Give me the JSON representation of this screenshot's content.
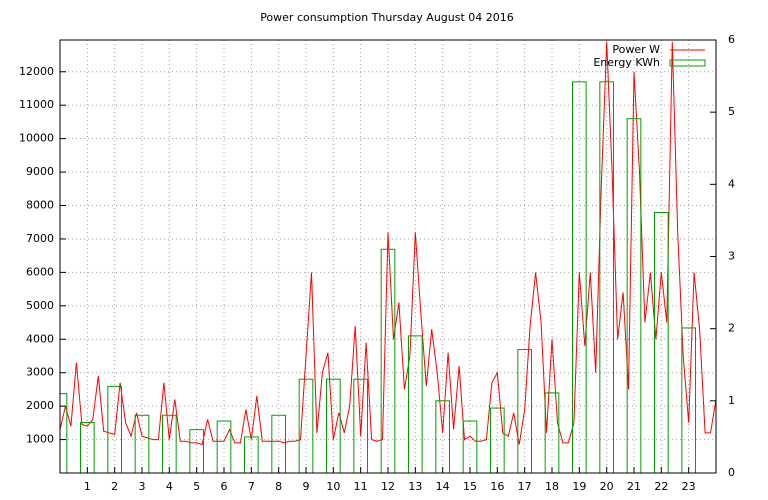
{
  "chart_data": {
    "type": "line",
    "title": "Power consumption Thursday August 04 2016",
    "xlim": [
      0,
      24
    ],
    "xticks": [
      1,
      2,
      3,
      4,
      5,
      6,
      7,
      8,
      9,
      10,
      11,
      12,
      13,
      14,
      15,
      16,
      17,
      18,
      19,
      20,
      21,
      22,
      23
    ],
    "ylim": [
      0,
      12950
    ],
    "yticks": [
      1000,
      2000,
      3000,
      4000,
      5000,
      6000,
      7000,
      8000,
      9000,
      10000,
      11000,
      12000
    ],
    "y2lim": [
      0,
      6
    ],
    "y2ticks": [
      0,
      1,
      2,
      3,
      4,
      5,
      6
    ],
    "grid": true,
    "legend": "top-right",
    "series": [
      {
        "name": "Power W",
        "color": "#ff0000",
        "style": "lines",
        "x": [
          0,
          0.2,
          0.4,
          0.6,
          0.8,
          1,
          1.2,
          1.4,
          1.6,
          1.8,
          2,
          2.2,
          2.4,
          2.6,
          2.8,
          3,
          3.2,
          3.4,
          3.6,
          3.8,
          4,
          4.2,
          4.4,
          4.6,
          4.8,
          5,
          5.2,
          5.4,
          5.6,
          5.8,
          6,
          6.2,
          6.4,
          6.6,
          6.8,
          7,
          7.2,
          7.4,
          7.6,
          7.8,
          8,
          8.2,
          8.4,
          8.6,
          8.8,
          9,
          9.2,
          9.4,
          9.6,
          9.8,
          10,
          10.2,
          10.4,
          10.6,
          10.8,
          11,
          11.2,
          11.4,
          11.6,
          11.8,
          12,
          12.2,
          12.4,
          12.6,
          12.8,
          13,
          13.2,
          13.4,
          13.6,
          13.8,
          14,
          14.2,
          14.4,
          14.6,
          14.8,
          15,
          15.2,
          15.4,
          15.6,
          15.8,
          16,
          16.2,
          16.4,
          16.6,
          16.8,
          17,
          17.2,
          17.4,
          17.6,
          17.8,
          18,
          18.2,
          18.4,
          18.6,
          18.8,
          19,
          19.2,
          19.4,
          19.6,
          19.8,
          20,
          20.2,
          20.4,
          20.6,
          20.8,
          21,
          21.2,
          21.4,
          21.6,
          21.8,
          22,
          22.2,
          22.4,
          22.6,
          22.8,
          23,
          23.2,
          23.4,
          23.6,
          23.8,
          24
        ],
        "values": [
          1300,
          2000,
          1400,
          3300,
          1450,
          1400,
          1600,
          2900,
          1250,
          1200,
          1150,
          2700,
          1500,
          1100,
          1800,
          1100,
          1050,
          1000,
          1000,
          2700,
          1000,
          2200,
          950,
          950,
          900,
          900,
          850,
          1600,
          950,
          950,
          950,
          1300,
          900,
          900,
          1900,
          1000,
          2300,
          950,
          950,
          950,
          950,
          900,
          950,
          950,
          1000,
          3500,
          6000,
          1200,
          3000,
          3600,
          1000,
          1800,
          1200,
          2000,
          4400,
          1100,
          3900,
          1000,
          950,
          1000,
          7200,
          4000,
          5100,
          2500,
          3500,
          7200,
          4800,
          2600,
          4300,
          3000,
          1200,
          3600,
          1300,
          3200,
          1000,
          1100,
          950,
          950,
          1000,
          2700,
          3000,
          1200,
          1100,
          1800,
          850,
          1900,
          4400,
          6000,
          4500,
          1200,
          4000,
          1500,
          900,
          900,
          1500,
          6000,
          3800,
          6000,
          3000,
          8500,
          12900,
          9000,
          4000,
          5400,
          2500,
          12000,
          9000,
          4500,
          6000,
          4000,
          6000,
          4500,
          12900,
          7200,
          3500,
          1500,
          6000,
          4300,
          1200,
          1200,
          2200
        ]
      },
      {
        "name": "Energy KWh",
        "color": "#00a000",
        "style": "boxes",
        "axis": "y2",
        "boxwidth": 0.5,
        "x": [
          0,
          1,
          2,
          3,
          4,
          5,
          6,
          7,
          8,
          9,
          10,
          11,
          12,
          13,
          14,
          15,
          16,
          17,
          18,
          19,
          20,
          21,
          22,
          23
        ],
        "values": [
          1.1,
          0.7,
          1.2,
          0.8,
          0.8,
          0.6,
          0.72,
          0.5,
          0.8,
          1.3,
          1.3,
          1.3,
          3.1,
          1.9,
          1.0,
          0.72,
          0.9,
          1.71,
          1.11,
          5.42,
          5.42,
          4.91,
          3.61,
          2.01
        ]
      }
    ]
  }
}
